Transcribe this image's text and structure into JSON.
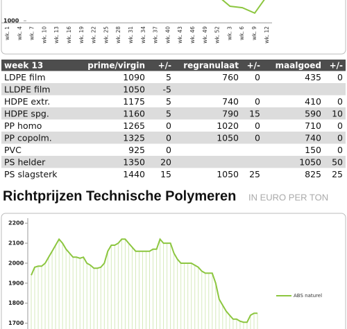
{
  "chart_data": [
    {
      "type": "line",
      "categories": [
        "wk. 1",
        "wk. 4",
        "wk. 7",
        "wk. 10",
        "wk. 13",
        "wk. 16",
        "wk. 19",
        "wk. 22",
        "wk. 25",
        "wk. 28",
        "wk. 31",
        "wk. 34",
        "wk. 37",
        "wk. 40",
        "wk. 43",
        "wk. 46",
        "wk. 49",
        "wk. 52",
        "wk. 3",
        "wk. 6",
        "wk. 9",
        "wk. 12"
      ],
      "series": [
        {
          "color": "#8cc63f",
          "values": [
            null,
            null,
            null,
            null,
            null,
            null,
            null,
            null,
            null,
            null,
            null,
            null,
            null,
            null,
            null,
            null,
            null,
            1120,
            1070,
            1063,
            1037,
            1120
          ]
        }
      ],
      "ylim": [
        990,
        1100
      ],
      "yticks": [
        1000
      ]
    },
    {
      "type": "line",
      "series": [
        {
          "name": "ABS naturel",
          "color": "#8cc63f",
          "values": [
            1940,
            1980,
            1985,
            1985,
            2000,
            2030,
            2060,
            2090,
            2120,
            2100,
            2070,
            2050,
            2030,
            2030,
            2025,
            2030,
            2000,
            1990,
            1975,
            1975,
            1980,
            2000,
            2060,
            2090,
            2090,
            2100,
            2120,
            2120,
            2100,
            2080,
            2060,
            2060,
            2060,
            2060,
            2060,
            2070,
            2070,
            2120,
            2100,
            2100,
            2100,
            2050,
            2020,
            2000,
            2000,
            2000,
            2000,
            1990,
            1980,
            1960,
            1950,
            1950,
            1950,
            1900,
            1820,
            1790,
            1760,
            1740,
            1720,
            1720,
            1710,
            1705,
            1705,
            1740,
            1750,
            1750
          ]
        }
      ],
      "ylim": [
        1671,
        2225
      ],
      "yticks": [
        1700,
        1800,
        1900,
        2000,
        2100,
        2200
      ]
    }
  ],
  "table": {
    "header": [
      "week 13",
      "prime/virgin",
      "+/-",
      "regranulaat",
      "+/-",
      "maalgoed",
      "+/-"
    ],
    "rows": [
      [
        "LDPE film",
        "1090",
        "5",
        "760",
        "0",
        "435",
        "0"
      ],
      [
        "LLDPE film",
        "1050",
        "-5",
        null,
        null,
        null,
        null
      ],
      [
        "HDPE extr.",
        "1175",
        "5",
        "740",
        "0",
        "410",
        "0"
      ],
      [
        "HDPE spg.",
        "1160",
        "5",
        "790",
        "15",
        "590",
        "10"
      ],
      [
        "PP homo",
        "1265",
        "0",
        "1020",
        "0",
        "710",
        "0"
      ],
      [
        "PP copolm.",
        "1325",
        "0",
        "1050",
        "0",
        "740",
        "0"
      ],
      [
        "PVC",
        "925",
        "0",
        null,
        null,
        "150",
        "0"
      ],
      [
        "PS helder",
        "1350",
        "20",
        null,
        null,
        "1050",
        "50"
      ],
      [
        "PS slagsterk",
        "1440",
        "15",
        "1050",
        "25",
        "825",
        "25"
      ]
    ]
  },
  "heading": {
    "title": "Richtprijzen Technische Polymeren",
    "subtitle": "IN EURO PER TON"
  }
}
